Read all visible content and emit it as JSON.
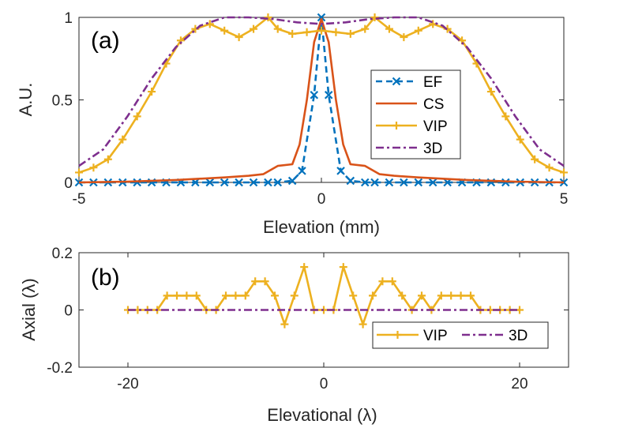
{
  "chart_data": [
    {
      "type": "line",
      "panel_label": "(a)",
      "xlabel": "Elevation (mm)",
      "ylabel": "A.U.",
      "xlim": [
        -5,
        5
      ],
      "ylim": [
        0,
        1
      ],
      "xticks": [
        "-5",
        "0",
        "5"
      ],
      "yticks": [
        "0",
        "0.5",
        "1"
      ],
      "legend": [
        "EF",
        "CS",
        "VIP",
        "3D"
      ],
      "series": [
        {
          "name": "EF",
          "color": "#0072BD",
          "style": "dashed",
          "marker": "x",
          "x": [
            -5.0,
            -4.7,
            -4.4,
            -4.1,
            -3.8,
            -3.5,
            -3.2,
            -2.9,
            -2.6,
            -2.3,
            -2.0,
            -1.7,
            -1.4,
            -1.1,
            -0.9,
            -0.6,
            -0.4,
            -0.15,
            0.0,
            0.15,
            0.4,
            0.6,
            0.9,
            1.1,
            1.4,
            1.7,
            2.0,
            2.3,
            2.6,
            2.9,
            3.2,
            3.5,
            3.8,
            4.1,
            4.4,
            4.7,
            5.0
          ],
          "y": [
            0.0,
            0.0,
            0.0,
            0.0,
            0.0,
            0.0,
            0.0,
            0.0,
            0.0,
            0.0,
            0.0,
            0.0,
            0.0,
            0.0,
            0.0,
            0.01,
            0.07,
            0.53,
            1.0,
            0.53,
            0.07,
            0.01,
            0.0,
            0.0,
            0.0,
            0.0,
            0.0,
            0.0,
            0.0,
            0.0,
            0.0,
            0.0,
            0.0,
            0.0,
            0.0,
            0.0,
            0.0
          ]
        },
        {
          "name": "CS",
          "color": "#D95319",
          "style": "solid",
          "x": [
            -5.0,
            -4.0,
            -3.0,
            -2.0,
            -1.5,
            -1.2,
            -0.9,
            -0.6,
            -0.45,
            -0.3,
            -0.15,
            0.0,
            0.15,
            0.3,
            0.45,
            0.6,
            0.9,
            1.2,
            1.5,
            2.0,
            3.0,
            4.0,
            5.0
          ],
          "y": [
            0.0,
            0.005,
            0.015,
            0.03,
            0.04,
            0.05,
            0.1,
            0.11,
            0.23,
            0.5,
            0.85,
            0.99,
            0.85,
            0.5,
            0.23,
            0.11,
            0.1,
            0.05,
            0.04,
            0.03,
            0.015,
            0.005,
            0.0
          ]
        },
        {
          "name": "VIP",
          "color": "#EDB120",
          "style": "solid",
          "marker": "+",
          "x": [
            -5.0,
            -4.7,
            -4.4,
            -4.1,
            -3.8,
            -3.5,
            -3.2,
            -2.9,
            -2.6,
            -2.3,
            -2.0,
            -1.7,
            -1.4,
            -1.1,
            -0.9,
            -0.6,
            -0.3,
            0.0,
            0.3,
            0.6,
            0.9,
            1.1,
            1.4,
            1.7,
            2.0,
            2.3,
            2.6,
            2.9,
            3.2,
            3.5,
            3.8,
            4.1,
            4.4,
            4.7,
            5.0
          ],
          "y": [
            0.06,
            0.09,
            0.14,
            0.26,
            0.4,
            0.55,
            0.72,
            0.86,
            0.93,
            0.96,
            0.92,
            0.88,
            0.93,
            1.0,
            0.93,
            0.9,
            0.91,
            0.92,
            0.91,
            0.9,
            0.93,
            1.0,
            0.93,
            0.88,
            0.92,
            0.96,
            0.93,
            0.86,
            0.72,
            0.55,
            0.4,
            0.26,
            0.14,
            0.09,
            0.06
          ]
        },
        {
          "name": "3D",
          "color": "#7E2F8E",
          "style": "dashdot",
          "x": [
            -5.0,
            -4.5,
            -4.0,
            -3.5,
            -3.0,
            -2.5,
            -2.0,
            -1.5,
            -1.0,
            -0.5,
            0.0,
            0.5,
            1.0,
            1.5,
            2.0,
            2.5,
            3.0,
            3.5,
            4.0,
            4.5,
            5.0
          ],
          "y": [
            0.1,
            0.2,
            0.4,
            0.63,
            0.82,
            0.95,
            1.0,
            1.0,
            0.99,
            0.97,
            0.96,
            0.97,
            0.99,
            1.0,
            1.0,
            0.95,
            0.82,
            0.63,
            0.4,
            0.2,
            0.1
          ]
        }
      ]
    },
    {
      "type": "line",
      "panel_label": "(b)",
      "xlabel": "Elevational (λ)",
      "ylabel": "Axial (λ)",
      "xlim": [
        -25,
        25
      ],
      "ylim": [
        -0.2,
        0.2
      ],
      "xticks": [
        "-20",
        "0",
        "20"
      ],
      "yticks": [
        "-0.2",
        "0",
        "0.2"
      ],
      "legend": [
        "VIP",
        "3D"
      ],
      "series": [
        {
          "name": "VIP",
          "color": "#EDB120",
          "style": "solid",
          "marker": "+",
          "x": [
            -20,
            -19,
            -18,
            -17,
            -16,
            -15,
            -14,
            -13,
            -12,
            -11,
            -10,
            -9,
            -8,
            -7,
            -6,
            -5,
            -4,
            -3,
            -2,
            -1,
            0,
            1,
            2,
            3,
            4,
            5,
            6,
            7,
            8,
            9,
            10,
            11,
            12,
            13,
            14,
            15,
            16,
            17,
            18,
            19,
            20
          ],
          "y": [
            0,
            0,
            0,
            0,
            0.05,
            0.05,
            0.05,
            0.05,
            0,
            0,
            0.05,
            0.05,
            0.05,
            0.1,
            0.1,
            0.05,
            -0.05,
            0.05,
            0.15,
            0,
            0,
            0,
            0.15,
            0.05,
            -0.05,
            0.05,
            0.1,
            0.1,
            0.05,
            0,
            0.05,
            0,
            0.05,
            0.05,
            0.05,
            0.05,
            0,
            0,
            0,
            0,
            0
          ]
        },
        {
          "name": "3D",
          "color": "#7E2F8E",
          "style": "dashdot",
          "x": [
            -20,
            20
          ],
          "y": [
            0,
            0
          ]
        }
      ]
    }
  ]
}
